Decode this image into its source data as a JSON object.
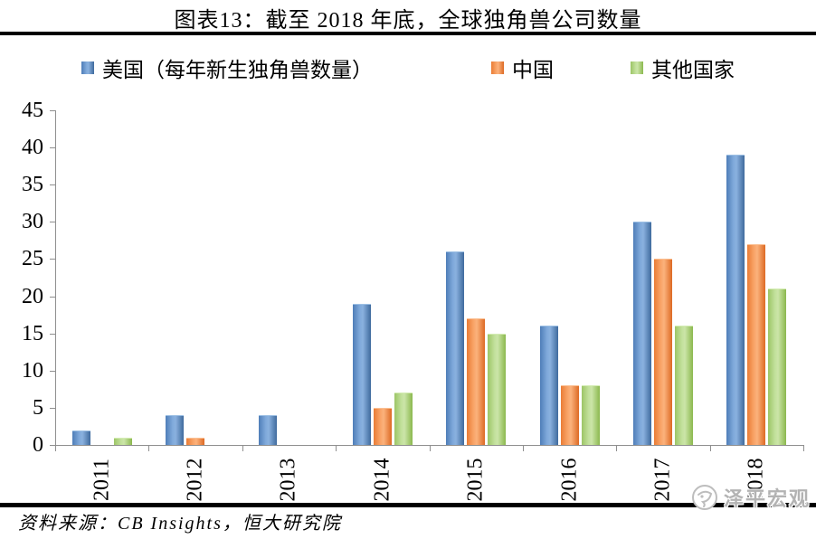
{
  "title": "图表13：截至 2018 年底，全球独角兽公司数量",
  "source_note": "资料来源：CB Insights，恒大研究院",
  "watermark": "泽平宏观",
  "colors": {
    "us_blue": "#4f81bd",
    "china_orange": "#f79646",
    "other_green": "#9bbb59",
    "axis_gray": "#8f8f8f",
    "watermark_gray": "#b3b3b3"
  },
  "chart_data": {
    "type": "bar",
    "title": "图表13：截至 2018 年底，全球独角兽公司数量",
    "categories": [
      "2011",
      "2012",
      "2013",
      "2014",
      "2015",
      "2016",
      "2017",
      "2018"
    ],
    "series": [
      {
        "name": "美国（每年新生独角兽数量）",
        "key": "us",
        "color": "#4f81bd",
        "values": [
          2,
          4,
          4,
          19,
          26,
          16,
          30,
          39
        ]
      },
      {
        "name": "中国",
        "key": "china",
        "color": "#f79646",
        "values": [
          0,
          1,
          0,
          5,
          17,
          8,
          25,
          27
        ]
      },
      {
        "name": "其他国家",
        "key": "other",
        "color": "#9bbb59",
        "values": [
          1,
          0,
          0,
          7,
          15,
          8,
          16,
          21
        ]
      }
    ],
    "xlabel": "",
    "ylabel": "",
    "ylim": [
      0,
      45
    ],
    "ytick_step": 5,
    "yticks": [
      "0",
      "5",
      "10",
      "15",
      "20",
      "25",
      "30",
      "35",
      "40",
      "45"
    ],
    "grid": false,
    "legend_position": "top",
    "x_tick_label_rotation": -90
  }
}
